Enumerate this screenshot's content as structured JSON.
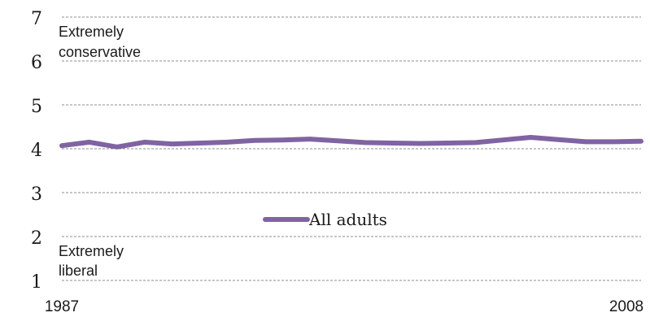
{
  "chart_data": {
    "type": "line",
    "title": "",
    "xlabel": "",
    "ylabel": "",
    "ylim": [
      1,
      7
    ],
    "xlim": [
      1987,
      2008
    ],
    "y_ticks": [
      "1",
      "2",
      "3",
      "4",
      "5",
      "6",
      "7"
    ],
    "x_tick_labels": [
      "1987",
      "2008"
    ],
    "grid": "horizontal-dashed",
    "legend_position": "center",
    "annotations": {
      "top": [
        "Extremely",
        "conservative"
      ],
      "bottom": [
        "Extremely",
        "liberal"
      ]
    },
    "series": [
      {
        "name": "All adults",
        "color": "#8064a2",
        "x": [
          1987,
          1988,
          1989,
          1990,
          1991,
          1992,
          1993,
          1994,
          1995,
          1996,
          1997,
          1998,
          1999,
          2000,
          2001,
          2002,
          2003,
          2004,
          2005,
          2006,
          2007,
          2008
        ],
        "values": [
          4.07,
          4.15,
          4.04,
          4.15,
          4.11,
          4.13,
          4.15,
          4.19,
          4.2,
          4.22,
          4.18,
          4.14,
          4.13,
          4.12,
          4.13,
          4.14,
          4.2,
          4.26,
          4.21,
          4.16,
          4.16,
          4.17
        ]
      }
    ]
  }
}
